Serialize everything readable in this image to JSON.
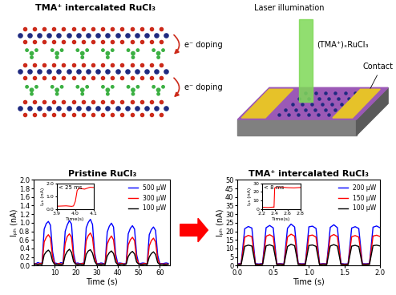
{
  "diagram": {
    "intercalation": {
      "title": "TMA⁺ intercalated RuCl₃",
      "arrows": [
        "e⁻ doping",
        "e⁻ doping"
      ]
    },
    "device": {
      "laser": "Laser illumination",
      "material": "(TMA⁺)ₓRuCl₃",
      "contact": "Contact"
    }
  },
  "chart_data": [
    {
      "type": "line",
      "title": "Pristine RuCl₃",
      "x_label": "Time (s)",
      "y_label": "Iₚₕ (nA)",
      "legend": "upper right",
      "xlim": [
        0,
        65
      ],
      "xticks": [
        10,
        20,
        30,
        40,
        50,
        60
      ],
      "ylim": [
        0.0,
        2.0
      ],
      "yticks": [
        0.0,
        0.2,
        0.4,
        0.6,
        0.8,
        1.0,
        1.2,
        1.4,
        1.6,
        1.8,
        2.0
      ],
      "x": [
        0,
        1,
        2,
        3,
        4,
        5,
        6,
        7,
        8,
        9,
        10,
        11,
        12,
        13,
        14,
        15,
        16,
        17,
        18,
        19,
        20,
        21,
        22,
        23,
        24,
        25,
        26,
        27,
        28,
        29,
        30,
        31,
        32,
        33,
        34,
        35,
        36,
        37,
        38,
        39,
        40,
        41,
        42,
        43,
        44,
        45,
        46,
        47,
        48,
        49,
        50,
        51,
        52,
        53,
        54,
        55,
        56,
        57,
        58,
        59,
        60,
        61,
        62,
        63,
        64
      ],
      "series": [
        {
          "name": "500 µW",
          "color": "#0000ff",
          "values": [
            0.05,
            0.04,
            0.07,
            0.05,
            0.06,
            0.85,
            0.98,
            1.03,
            0.94,
            0.32,
            0.06,
            0.05,
            0.04,
            0.07,
            0.05,
            0.8,
            0.95,
            1.05,
            0.97,
            0.28,
            0.05,
            0.06,
            0.04,
            0.05,
            0.06,
            0.88,
            1.01,
            1.08,
            0.96,
            0.3,
            0.05,
            0.04,
            0.06,
            0.05,
            0.04,
            0.78,
            0.92,
            0.99,
            0.9,
            0.27,
            0.05,
            0.06,
            0.05,
            0.04,
            0.05,
            0.74,
            0.87,
            0.93,
            0.85,
            0.25,
            0.04,
            0.05,
            0.06,
            0.05,
            0.04,
            0.72,
            0.84,
            0.9,
            0.82,
            0.24,
            0.05,
            0.04,
            0.05,
            0.06,
            0.05
          ]
        },
        {
          "name": "300 µW",
          "color": "#ff0000",
          "values": [
            0.03,
            0.04,
            0.03,
            0.05,
            0.04,
            0.55,
            0.66,
            0.72,
            0.64,
            0.2,
            0.04,
            0.03,
            0.05,
            0.04,
            0.03,
            0.52,
            0.68,
            0.74,
            0.66,
            0.18,
            0.03,
            0.04,
            0.03,
            0.05,
            0.04,
            0.58,
            0.7,
            0.76,
            0.65,
            0.21,
            0.04,
            0.03,
            0.04,
            0.03,
            0.05,
            0.5,
            0.62,
            0.69,
            0.6,
            0.17,
            0.03,
            0.04,
            0.05,
            0.03,
            0.04,
            0.48,
            0.6,
            0.66,
            0.58,
            0.16,
            0.04,
            0.03,
            0.04,
            0.05,
            0.03,
            0.46,
            0.58,
            0.64,
            0.55,
            0.15,
            0.03,
            0.04,
            0.03,
            0.04,
            0.03
          ]
        },
        {
          "name": "100 µW",
          "color": "#000000",
          "values": [
            0.02,
            0.03,
            0.02,
            0.03,
            0.02,
            0.25,
            0.32,
            0.36,
            0.3,
            0.1,
            0.02,
            0.03,
            0.02,
            0.02,
            0.03,
            0.24,
            0.33,
            0.38,
            0.31,
            0.09,
            0.03,
            0.02,
            0.03,
            0.02,
            0.02,
            0.26,
            0.34,
            0.37,
            0.29,
            0.1,
            0.02,
            0.03,
            0.02,
            0.03,
            0.02,
            0.22,
            0.3,
            0.34,
            0.28,
            0.08,
            0.02,
            0.02,
            0.03,
            0.02,
            0.03,
            0.21,
            0.29,
            0.33,
            0.27,
            0.08,
            0.03,
            0.02,
            0.02,
            0.03,
            0.02,
            0.2,
            0.28,
            0.32,
            0.26,
            0.07,
            0.02,
            0.03,
            0.02,
            0.02,
            0.03
          ]
        }
      ],
      "inset": {
        "type": "line",
        "annotation": "< 25 ms",
        "x_label": "Time(s)",
        "y_label": "Iₚₕ (nA)",
        "xlim": [
          3.9,
          4.1
        ],
        "xticks": [
          3.9,
          4.0,
          4.1
        ],
        "ylim": [
          0.0,
          2.0
        ],
        "yticks": [
          0.0,
          1.0,
          2.0
        ],
        "x": [
          3.9,
          3.95,
          3.98,
          3.99,
          4.0,
          4.01,
          4.02,
          4.05,
          4.08,
          4.1
        ],
        "series": [
          {
            "color": "#ff0000",
            "values": [
              0.22,
              0.25,
              0.21,
              0.24,
              0.6,
              1.45,
              1.62,
              1.55,
              1.7,
              1.68
            ]
          }
        ]
      }
    },
    {
      "type": "line",
      "title": "TMA⁺ intercalated RuCl₃",
      "x_label": "Time (s)",
      "y_label": "Iₚₕ (nA)",
      "legend": "upper right",
      "xlim": [
        0.0,
        2.0
      ],
      "xticks": [
        0.0,
        0.5,
        1.0,
        1.5,
        2.0
      ],
      "ylim": [
        0,
        50
      ],
      "yticks": [
        0,
        5,
        10,
        15,
        20,
        25,
        30,
        35,
        40,
        45,
        50
      ],
      "x": [
        0.0,
        0.05,
        0.1,
        0.15,
        0.2,
        0.25,
        0.3,
        0.35,
        0.4,
        0.45,
        0.5,
        0.55,
        0.6,
        0.65,
        0.7,
        0.75,
        0.8,
        0.85,
        0.9,
        0.95,
        1.0,
        1.05,
        1.1,
        1.15,
        1.2,
        1.25,
        1.3,
        1.35,
        1.4,
        1.45,
        1.5,
        1.55,
        1.6,
        1.65,
        1.7,
        1.75,
        1.8,
        1.85,
        1.9,
        1.95,
        2.0
      ],
      "series": [
        {
          "name": "200 µW",
          "color": "#0000ff",
          "values": [
            1.0,
            1.2,
            21.5,
            22.8,
            21.9,
            1.1,
            0.9,
            1.2,
            22.1,
            23.4,
            22.0,
            1.0,
            1.1,
            0.9,
            21.8,
            24.2,
            22.5,
            1.2,
            1.0,
            1.1,
            22.6,
            23.0,
            21.7,
            0.9,
            1.1,
            1.0,
            22.3,
            23.8,
            22.1,
            1.2,
            0.9,
            1.0,
            21.9,
            22.7,
            21.6,
            1.1,
            1.0,
            1.2,
            22.4,
            23.1,
            22.0
          ]
        },
        {
          "name": "150 µW",
          "color": "#ff0000",
          "values": [
            0.8,
            0.9,
            16.5,
            17.6,
            16.9,
            0.8,
            0.7,
            0.9,
            17.1,
            18.0,
            16.8,
            0.8,
            0.9,
            0.7,
            16.7,
            18.3,
            17.2,
            0.9,
            0.8,
            0.8,
            17.4,
            17.8,
            16.6,
            0.7,
            0.9,
            0.8,
            17.0,
            18.1,
            16.9,
            0.9,
            0.7,
            0.8,
            16.8,
            17.5,
            16.6,
            0.8,
            0.8,
            0.9,
            17.2,
            17.7,
            16.9
          ]
        },
        {
          "name": "100 µW",
          "color": "#000000",
          "values": [
            0.5,
            0.6,
            11.2,
            11.9,
            11.4,
            0.5,
            0.4,
            0.6,
            11.5,
            12.1,
            11.3,
            0.5,
            0.6,
            0.4,
            11.1,
            12.4,
            11.6,
            0.6,
            0.5,
            0.5,
            11.7,
            12.0,
            11.2,
            0.4,
            0.6,
            0.5,
            11.4,
            12.2,
            11.3,
            0.6,
            0.4,
            0.5,
            11.3,
            11.8,
            11.1,
            0.5,
            0.5,
            0.6,
            11.6,
            11.9,
            11.4
          ]
        }
      ],
      "inset": {
        "type": "line",
        "annotation": "< 8 ms",
        "x_label": "Time(s)",
        "y_label": "Iₚₕ (nA)",
        "xlim": [
          2.2,
          2.8
        ],
        "xticks": [
          2.2,
          2.4,
          2.6,
          2.8
        ],
        "ylim": [
          0,
          30
        ],
        "yticks": [
          0,
          10,
          20,
          30
        ],
        "x": [
          2.2,
          2.3,
          2.38,
          2.39,
          2.4,
          2.41,
          2.45,
          2.5,
          2.6,
          2.7,
          2.8
        ],
        "series": [
          {
            "color": "#ff0000",
            "values": [
              2.1,
              1.8,
              2.3,
              2.0,
              24.5,
              25.3,
              24.8,
              25.6,
              25.0,
              24.7,
              25.2
            ]
          }
        ]
      }
    }
  ]
}
